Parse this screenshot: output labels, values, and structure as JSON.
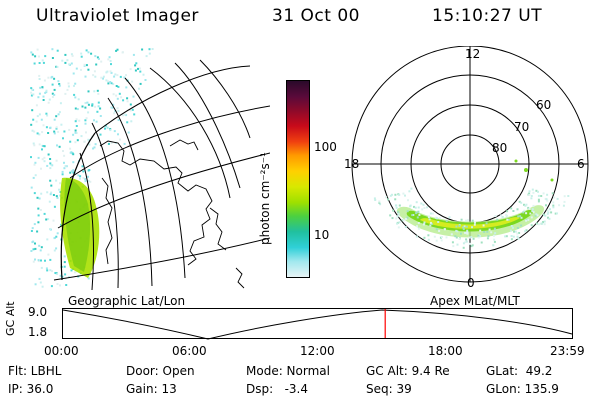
{
  "header": {
    "instrument": "Ultraviolet Imager",
    "date": "31 Oct 00",
    "time": "15:10:27 UT"
  },
  "colorbar": {
    "unit_label": "photon cm⁻²s⁻¹",
    "ticks": [
      "100",
      "10"
    ],
    "colors": [
      "#2a0a2a",
      "#5a0a3a",
      "#8c0a2a",
      "#c80a1a",
      "#f04010",
      "#ff9a00",
      "#ffd000",
      "#d8e800",
      "#9ee000",
      "#4cd040",
      "#20c0a0",
      "#30d0d8",
      "#a0e8ee",
      "#e8f4f6"
    ]
  },
  "left_panel": {
    "caption": "Geographic Lat/Lon"
  },
  "right_panel": {
    "caption": "Apex MLat/MLT",
    "mlt_labels": [
      "12",
      "18",
      "6",
      "0"
    ],
    "lat_labels": [
      "60",
      "70",
      "80"
    ]
  },
  "timeline": {
    "ylabel": "GC Alt",
    "ytick_top": "9.0",
    "ytick_bottom": "1.8",
    "xticks": [
      "00:00",
      "06:00",
      "12:00",
      "18:00",
      "23:59"
    ],
    "current_time_fraction": 0.633,
    "marker_color": "#ff0000"
  },
  "footer": {
    "flt": "Flt: LBHL",
    "ip": "IP: 36.0",
    "door": "Door: Open",
    "gain": "Gain: 13",
    "mode": "Mode: Normal",
    "dsp": "Dsp:   -3.4",
    "gcalt": "GC Alt: 9.4 Re",
    "seq": "Seq: 39",
    "glat": "GLat:  49.2",
    "glon": "GLon: 135.9"
  }
}
